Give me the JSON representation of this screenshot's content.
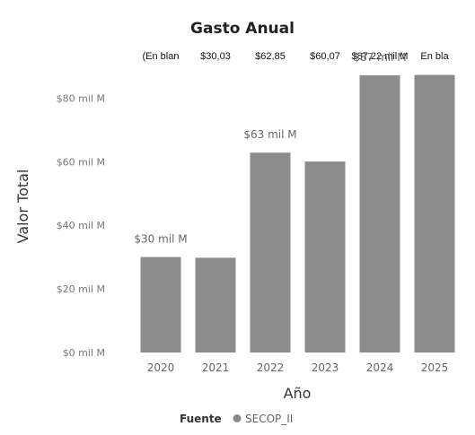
{
  "chart_data": {
    "type": "bar",
    "title": "Gasto Anual",
    "xlabel": "Año",
    "ylabel": "Valor Total",
    "categories": [
      "2020",
      "2021",
      "2022",
      "2023",
      "2024",
      "2025"
    ],
    "values": [
      30.03,
      29.8,
      62.85,
      60.07,
      87.22,
      87.3
    ],
    "ylim": [
      0,
      90
    ],
    "y_ticks": [
      {
        "value": 0,
        "label": "$0 mil M"
      },
      {
        "value": 20,
        "label": "$20 mil M"
      },
      {
        "value": 40,
        "label": "$40 mil M"
      },
      {
        "value": 60,
        "label": "$60 mil M"
      },
      {
        "value": 80,
        "label": "$80 mil M"
      }
    ],
    "data_labels": [
      {
        "index": 0,
        "text": "$30 mil M"
      },
      {
        "index": 2,
        "text": "$63 mil M"
      },
      {
        "index": 4,
        "text": "$87 mil M"
      }
    ],
    "top_labels": [
      "(En blan",
      "$30,03",
      "$62,85",
      "$60,07",
      "$87,22 mil M",
      "En bla"
    ],
    "legend": {
      "title": "Fuente",
      "entries": [
        {
          "name": "SECOP_II",
          "color": "#8a8a8a"
        }
      ]
    },
    "bar_color": "#8c8c8c",
    "grid": false
  }
}
